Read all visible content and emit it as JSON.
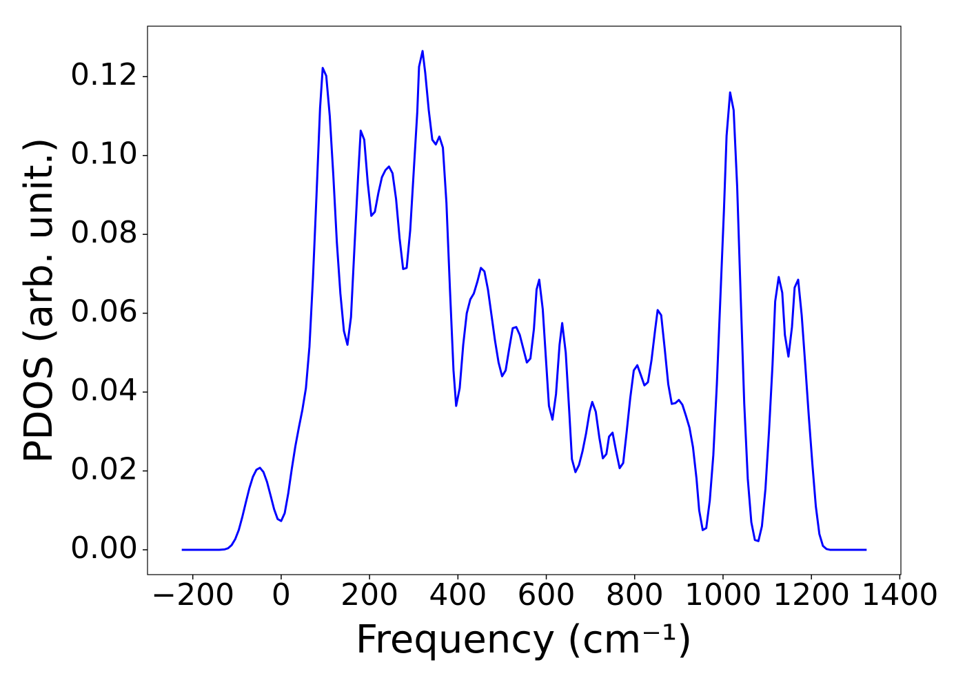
{
  "chart_data": {
    "type": "line",
    "xlabel": "Frequency (cm⁻¹)",
    "ylabel": "PDOS (arb. unit.)",
    "color": "#0000ff",
    "xlim": [
      -302.5,
      1402.5
    ],
    "ylim": [
      -0.0063,
      0.1328
    ],
    "xticks": [
      {
        "value": -200,
        "label": "−200"
      },
      0,
      200,
      400,
      600,
      800,
      1000,
      1200,
      1400
    ],
    "yticks": [
      {
        "value": 0,
        "label": "0.00"
      },
      {
        "value": 0.02,
        "label": "0.02"
      },
      {
        "value": 0.04,
        "label": "0.04"
      },
      {
        "value": 0.06,
        "label": "0.06"
      },
      {
        "value": 0.08,
        "label": "0.08"
      },
      {
        "value": 0.1,
        "label": "0.10"
      },
      {
        "value": 0.12,
        "label": "0.12"
      }
    ],
    "x": [
      -225,
      -180,
      -140,
      -128,
      -120,
      -112,
      -104,
      -96,
      -88,
      -80,
      -72,
      -64,
      -56,
      -48,
      -40,
      -32,
      -24,
      -16,
      -8,
      0,
      8,
      16,
      24,
      32,
      40,
      48,
      56,
      64,
      72,
      80,
      88,
      94,
      102,
      110,
      118,
      126,
      134,
      142,
      150,
      158,
      166,
      174,
      180,
      188,
      196,
      204,
      212,
      220,
      228,
      236,
      244,
      252,
      260,
      268,
      276,
      284,
      292,
      300,
      308,
      312,
      320,
      326,
      334,
      342,
      350,
      358,
      366,
      374,
      382,
      390,
      396,
      404,
      412,
      420,
      428,
      436,
      444,
      452,
      460,
      468,
      476,
      484,
      492,
      500,
      508,
      516,
      524,
      532,
      540,
      548,
      556,
      564,
      572,
      578,
      584,
      592,
      600,
      606,
      614,
      622,
      630,
      636,
      644,
      652,
      658,
      666,
      674,
      682,
      690,
      698,
      704,
      712,
      720,
      728,
      736,
      742,
      750,
      758,
      766,
      774,
      782,
      790,
      798,
      806,
      814,
      822,
      830,
      838,
      846,
      852,
      860,
      868,
      876,
      884,
      892,
      900,
      908,
      916,
      924,
      932,
      940,
      946,
      954,
      962,
      970,
      978,
      986,
      994,
      1002,
      1008,
      1016,
      1024,
      1032,
      1040,
      1048,
      1056,
      1064,
      1072,
      1080,
      1088,
      1096,
      1104,
      1112,
      1118,
      1126,
      1134,
      1140,
      1148,
      1156,
      1162,
      1170,
      1178,
      1186,
      1194,
      1202,
      1210,
      1218,
      1226,
      1234,
      1242,
      1260,
      1300,
      1325
    ],
    "values": [
      0,
      0,
      0,
      0.0001,
      0.0004,
      0.0012,
      0.0027,
      0.005,
      0.0083,
      0.012,
      0.0156,
      0.0185,
      0.0203,
      0.0208,
      0.0197,
      0.0172,
      0.0138,
      0.0103,
      0.0078,
      0.0073,
      0.0093,
      0.0143,
      0.0205,
      0.0262,
      0.031,
      0.0355,
      0.041,
      0.0515,
      0.069,
      0.09,
      0.112,
      0.1222,
      0.1202,
      0.11,
      0.095,
      0.078,
      0.065,
      0.0555,
      0.052,
      0.059,
      0.077,
      0.0945,
      0.1063,
      0.104,
      0.093,
      0.0847,
      0.0857,
      0.0905,
      0.0945,
      0.0963,
      0.0972,
      0.0955,
      0.089,
      0.079,
      0.0712,
      0.0715,
      0.081,
      0.096,
      0.111,
      0.1225,
      0.1265,
      0.121,
      0.1115,
      0.104,
      0.1028,
      0.1048,
      0.102,
      0.088,
      0.066,
      0.0455,
      0.0365,
      0.041,
      0.052,
      0.06,
      0.0635,
      0.065,
      0.068,
      0.0715,
      0.0706,
      0.066,
      0.0595,
      0.053,
      0.0475,
      0.044,
      0.0455,
      0.051,
      0.0562,
      0.0565,
      0.0545,
      0.051,
      0.0475,
      0.0485,
      0.056,
      0.066,
      0.0685,
      0.061,
      0.047,
      0.0365,
      0.033,
      0.0395,
      0.052,
      0.0575,
      0.05,
      0.035,
      0.023,
      0.0197,
      0.0215,
      0.025,
      0.0295,
      0.035,
      0.0375,
      0.035,
      0.0285,
      0.0232,
      0.0243,
      0.0287,
      0.0297,
      0.025,
      0.0207,
      0.022,
      0.03,
      0.0385,
      0.0455,
      0.0468,
      0.0443,
      0.0417,
      0.0425,
      0.048,
      0.0555,
      0.0608,
      0.0595,
      0.051,
      0.042,
      0.037,
      0.0372,
      0.038,
      0.0368,
      0.034,
      0.031,
      0.026,
      0.018,
      0.01,
      0.005,
      0.0055,
      0.0125,
      0.024,
      0.042,
      0.064,
      0.086,
      0.105,
      0.116,
      0.1115,
      0.092,
      0.064,
      0.037,
      0.018,
      0.007,
      0.0025,
      0.0022,
      0.006,
      0.0155,
      0.03,
      0.047,
      0.063,
      0.0692,
      0.0652,
      0.0545,
      0.049,
      0.0565,
      0.0665,
      0.0685,
      0.0595,
      0.047,
      0.034,
      0.022,
      0.011,
      0.004,
      0.001,
      0.0002,
      0,
      0,
      0,
      0
    ]
  }
}
